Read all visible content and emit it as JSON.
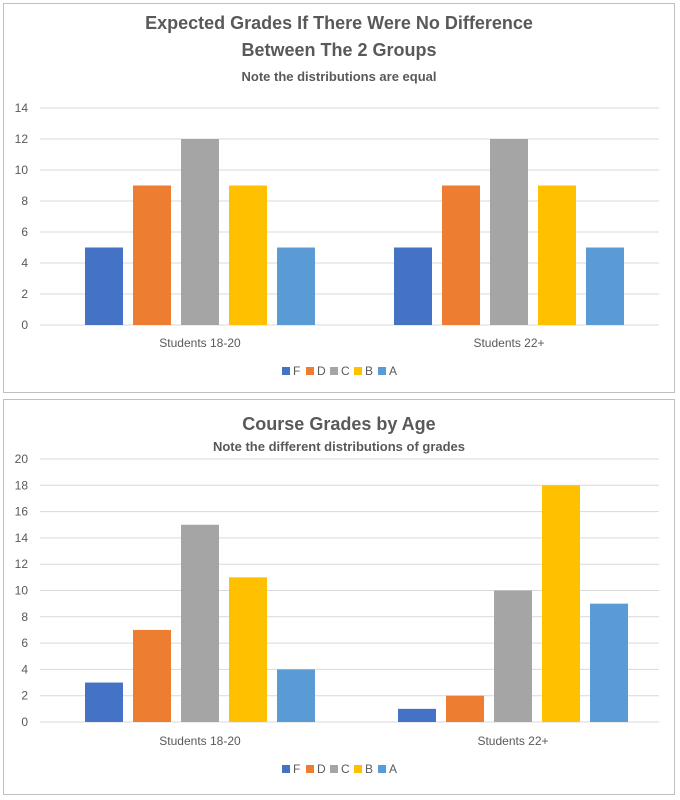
{
  "colors": {
    "F": "#4472C4",
    "D": "#ED7D31",
    "C": "#A5A5A5",
    "B": "#FFC000",
    "A": "#5B9BD5",
    "grid": "#d9d9d9",
    "text": "#595959"
  },
  "chart_data": [
    {
      "type": "bar",
      "title_lines": [
        "Expected Grades If There Were No Difference",
        "Between The 2 Groups"
      ],
      "subtitle": "Note the distributions are equal",
      "categories": [
        "Students 18-20",
        "Students 22+"
      ],
      "series": [
        {
          "name": "F",
          "values": [
            5,
            5
          ]
        },
        {
          "name": "D",
          "values": [
            9,
            9
          ]
        },
        {
          "name": "C",
          "values": [
            12,
            12
          ]
        },
        {
          "name": "B",
          "values": [
            9,
            9
          ]
        },
        {
          "name": "A",
          "values": [
            5,
            5
          ]
        }
      ],
      "ylim": [
        0,
        14
      ],
      "yticks": [
        0,
        2,
        4,
        6,
        8,
        10,
        12,
        14
      ],
      "grid": true,
      "legend": "bottom"
    },
    {
      "type": "bar",
      "title_lines": [
        "Course Grades by Age"
      ],
      "subtitle": "Note the different distributions of grades",
      "categories": [
        "Students 18-20",
        "Students 22+"
      ],
      "series": [
        {
          "name": "F",
          "values": [
            3,
            1
          ]
        },
        {
          "name": "D",
          "values": [
            7,
            2
          ]
        },
        {
          "name": "C",
          "values": [
            15,
            10
          ]
        },
        {
          "name": "B",
          "values": [
            11,
            18
          ]
        },
        {
          "name": "A",
          "values": [
            4,
            9
          ]
        }
      ],
      "ylim": [
        0,
        20
      ],
      "yticks": [
        0,
        2,
        4,
        6,
        8,
        10,
        12,
        14,
        16,
        18,
        20
      ],
      "grid": true,
      "legend": "bottom"
    }
  ]
}
